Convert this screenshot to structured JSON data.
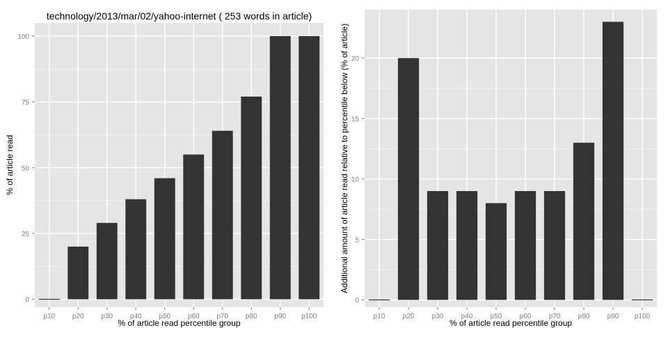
{
  "chart_data": [
    {
      "type": "bar",
      "title": "technology/2013/mar/02/yahoo-internet ( 253 words in article)",
      "xlabel": "% of article read percentile group",
      "ylabel": "% of article read",
      "categories": [
        "p10",
        "p20",
        "p30",
        "p40",
        "p50",
        "p60",
        "p70",
        "p80",
        "p90",
        "p100"
      ],
      "values": [
        0,
        20,
        29,
        38,
        46,
        55,
        64,
        77,
        100,
        100
      ],
      "ylim": [
        -3,
        105
      ],
      "yticks": [
        0,
        25,
        50,
        75,
        100
      ],
      "grid": true,
      "bar_color": "#333333",
      "panel_color": "#e5e5e5"
    },
    {
      "type": "bar",
      "title": "",
      "xlabel": "% of article read percentile group",
      "ylabel": "Additional amount of article read relative to percentile below (% of article)",
      "categories": [
        "p10",
        "p20",
        "p30",
        "p40",
        "p50",
        "p60",
        "p70",
        "p80",
        "p90",
        "p100"
      ],
      "values": [
        0,
        20,
        9,
        9,
        8,
        9,
        9,
        13,
        23,
        0
      ],
      "ylim": [
        -0.6,
        24
      ],
      "yticks": [
        0,
        5,
        10,
        15,
        20
      ],
      "grid": true,
      "bar_color": "#333333",
      "panel_color": "#e5e5e5"
    }
  ]
}
